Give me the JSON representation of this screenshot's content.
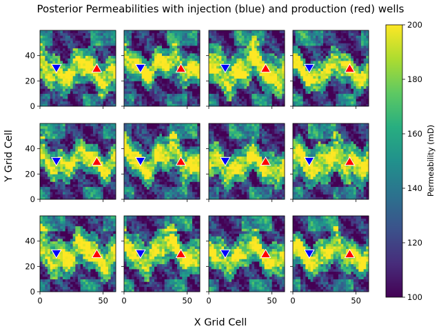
{
  "chart_data": {
    "type": "heatmap",
    "title": "Posterior Permeabilities with injection (blue) and production (red) wells",
    "xlabel": "X Grid Cell",
    "ylabel": "Y Grid Cell",
    "grid": false,
    "layout": {
      "rows": 3,
      "cols": 4,
      "sharex": true,
      "sharey": true
    },
    "x_range": [
      0,
      60
    ],
    "y_range": [
      0,
      60
    ],
    "x_ticks": [
      0,
      50
    ],
    "y_ticks": [
      0,
      20,
      40
    ],
    "colormap": "viridis",
    "colorbar": {
      "label": "Permeability (mD)",
      "min": 100,
      "max": 200,
      "ticks": [
        100,
        120,
        140,
        160,
        180,
        200
      ]
    },
    "wells": [
      {
        "type": "injection",
        "marker": "down-triangle",
        "color": "#0000ff",
        "x": 13,
        "y": 30
      },
      {
        "type": "production",
        "marker": "up-triangle",
        "color": "#ff0000",
        "x": 45,
        "y": 30
      }
    ],
    "panels": [
      {
        "row": 0,
        "col": 0,
        "band_center": 28,
        "band_width": 14,
        "waviness": 6,
        "seed": 11
      },
      {
        "row": 0,
        "col": 1,
        "band_center": 32,
        "band_width": 12,
        "waviness": 5,
        "seed": 23
      },
      {
        "row": 0,
        "col": 2,
        "band_center": 30,
        "band_width": 16,
        "waviness": 7,
        "seed": 37
      },
      {
        "row": 0,
        "col": 3,
        "band_center": 28,
        "band_width": 12,
        "waviness": 6,
        "seed": 41
      },
      {
        "row": 1,
        "col": 0,
        "band_center": 30,
        "band_width": 12,
        "waviness": 5,
        "seed": 53
      },
      {
        "row": 1,
        "col": 1,
        "band_center": 32,
        "band_width": 14,
        "waviness": 7,
        "seed": 67
      },
      {
        "row": 1,
        "col": 2,
        "band_center": 28,
        "band_width": 13,
        "waviness": 6,
        "seed": 71
      },
      {
        "row": 1,
        "col": 3,
        "band_center": 30,
        "band_width": 16,
        "waviness": 5,
        "seed": 83
      },
      {
        "row": 2,
        "col": 0,
        "band_center": 30,
        "band_width": 15,
        "waviness": 6,
        "seed": 97
      },
      {
        "row": 2,
        "col": 1,
        "band_center": 32,
        "band_width": 14,
        "waviness": 7,
        "seed": 101
      },
      {
        "row": 2,
        "col": 2,
        "band_center": 30,
        "band_width": 13,
        "waviness": 6,
        "seed": 113
      },
      {
        "row": 2,
        "col": 3,
        "band_center": 30,
        "band_width": 13,
        "waviness": 6,
        "seed": 127
      }
    ]
  }
}
